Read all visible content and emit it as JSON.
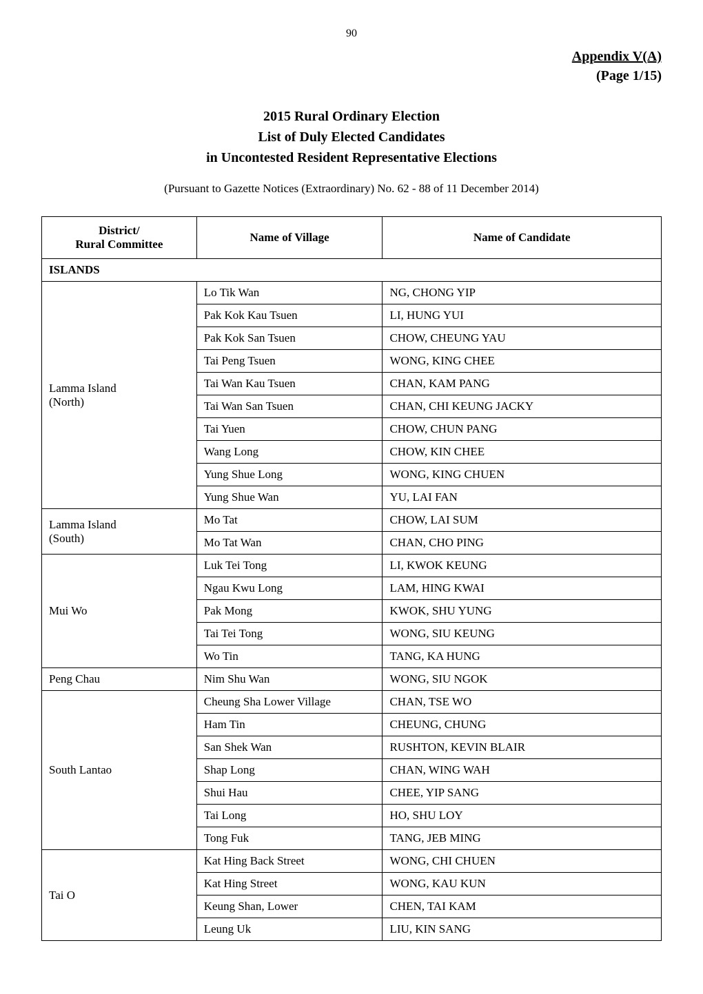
{
  "page_number": "90",
  "appendix": {
    "title": "Appendix  V(A)",
    "page_label": "(Page  1/15)"
  },
  "main_title": {
    "line1": "2015 Rural Ordinary Election",
    "line2": "List of Duly Elected Candidates",
    "line3": "in Uncontested Resident Representative Elections"
  },
  "gazette_note": "(Pursuant to Gazette Notices (Extraordinary) No. 62 - 88 of 11 December 2014)",
  "table": {
    "columns": {
      "district": "District/\nRural Committee",
      "village": "Name of Village",
      "candidate": "Name of Candidate"
    },
    "district_header": "ISLANDS",
    "committees": [
      {
        "name": "Lamma Island\n(North)",
        "rows": [
          {
            "village": "Lo Tik Wan",
            "candidate": "NG, CHONG YIP"
          },
          {
            "village": "Pak Kok Kau Tsuen",
            "candidate": "LI, HUNG YUI"
          },
          {
            "village": "Pak Kok San Tsuen",
            "candidate": "CHOW, CHEUNG YAU"
          },
          {
            "village": "Tai Peng Tsuen",
            "candidate": "WONG, KING CHEE"
          },
          {
            "village": "Tai Wan Kau Tsuen",
            "candidate": "CHAN, KAM PANG"
          },
          {
            "village": "Tai Wan San Tsuen",
            "candidate": "CHAN, CHI KEUNG JACKY"
          },
          {
            "village": "Tai Yuen",
            "candidate": "CHOW, CHUN PANG"
          },
          {
            "village": "Wang Long",
            "candidate": "CHOW, KIN CHEE"
          },
          {
            "village": "Yung Shue Long",
            "candidate": "WONG, KING CHUEN"
          },
          {
            "village": "Yung Shue Wan",
            "candidate": "YU, LAI FAN"
          }
        ]
      },
      {
        "name": "Lamma Island\n(South)",
        "rows": [
          {
            "village": "Mo Tat",
            "candidate": "CHOW, LAI SUM"
          },
          {
            "village": "Mo Tat Wan",
            "candidate": "CHAN, CHO PING"
          }
        ]
      },
      {
        "name": "Mui Wo",
        "rows": [
          {
            "village": "Luk Tei Tong",
            "candidate": "LI, KWOK KEUNG"
          },
          {
            "village": "Ngau Kwu Long",
            "candidate": "LAM, HING KWAI"
          },
          {
            "village": "Pak Mong",
            "candidate": "KWOK, SHU YUNG"
          },
          {
            "village": "Tai Tei Tong",
            "candidate": "WONG, SIU KEUNG"
          },
          {
            "village": "Wo Tin",
            "candidate": "TANG, KA HUNG"
          }
        ]
      },
      {
        "name": "Peng Chau",
        "rows": [
          {
            "village": "Nim Shu Wan",
            "candidate": "WONG, SIU NGOK"
          }
        ]
      },
      {
        "name": "South Lantao",
        "rows": [
          {
            "village": "Cheung Sha Lower Village",
            "candidate": "CHAN, TSE WO"
          },
          {
            "village": "Ham Tin",
            "candidate": "CHEUNG, CHUNG"
          },
          {
            "village": "San Shek Wan",
            "candidate": "RUSHTON, KEVIN BLAIR"
          },
          {
            "village": "Shap Long",
            "candidate": "CHAN, WING WAH"
          },
          {
            "village": "Shui Hau",
            "candidate": "CHEE, YIP SANG"
          },
          {
            "village": "Tai Long",
            "candidate": "HO, SHU LOY"
          },
          {
            "village": "Tong Fuk",
            "candidate": "TANG, JEB MING"
          }
        ]
      },
      {
        "name": "Tai O",
        "rows": [
          {
            "village": "Kat Hing Back Street",
            "candidate": "WONG, CHI CHUEN"
          },
          {
            "village": "Kat Hing Street",
            "candidate": "WONG, KAU KUN"
          },
          {
            "village": "Keung Shan, Lower",
            "candidate": "CHEN, TAI KAM"
          },
          {
            "village": "Leung Uk",
            "candidate": "LIU, KIN SANG"
          }
        ]
      }
    ]
  },
  "styling": {
    "background_color": "#ffffff",
    "text_color": "#000000",
    "border_color": "#000000",
    "font_family": "Times New Roman",
    "page_number_fontsize": 16,
    "appendix_fontsize": 20,
    "title_fontsize": 20,
    "gazette_fontsize": 17,
    "table_fontsize": 17
  }
}
